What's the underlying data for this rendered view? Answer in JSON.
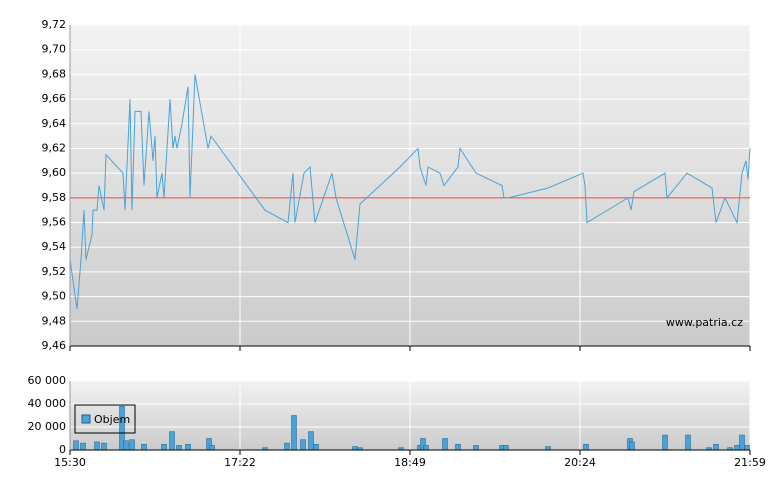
{
  "chart_data": [
    {
      "type": "line",
      "watermark": "www.patria.cz",
      "xlim": [
        0,
        680
      ],
      "ylim": [
        9.46,
        9.72
      ],
      "yticks": [
        {
          "value": 9.46,
          "label": "9,46"
        },
        {
          "value": 9.48,
          "label": "9,48"
        },
        {
          "value": 9.5,
          "label": "9,50"
        },
        {
          "value": 9.52,
          "label": "9,52"
        },
        {
          "value": 9.54,
          "label": "9,54"
        },
        {
          "value": 9.56,
          "label": "9,56"
        },
        {
          "value": 9.58,
          "label": "9,58"
        },
        {
          "value": 9.6,
          "label": "9,60"
        },
        {
          "value": 9.62,
          "label": "9,62"
        },
        {
          "value": 9.64,
          "label": "9,64"
        },
        {
          "value": 9.66,
          "label": "9,66"
        },
        {
          "value": 9.68,
          "label": "9,68"
        },
        {
          "value": 9.7,
          "label": "9,70"
        },
        {
          "value": 9.72,
          "label": "9,72"
        }
      ],
      "reference_line": 9.58,
      "reference_color": "#e8453c",
      "grid": true,
      "x": [
        0,
        7,
        11,
        14,
        16,
        22,
        23,
        27,
        29,
        34,
        36,
        53,
        55,
        60,
        62,
        65,
        71,
        74,
        79,
        83,
        85,
        87,
        92,
        94,
        100,
        103,
        105,
        107,
        112,
        118,
        120,
        125,
        138,
        141,
        195,
        218,
        223,
        225,
        234,
        240,
        245,
        262,
        266,
        285,
        290,
        330,
        348,
        350,
        356,
        358,
        370,
        374,
        388,
        390,
        406,
        432,
        434,
        438,
        478,
        513,
        515,
        517,
        558,
        561,
        564,
        595,
        597,
        617,
        642,
        646,
        655,
        667,
        672,
        676,
        678,
        680
      ],
      "series": [
        {
          "color": "#4aa3d6",
          "values": [
            9.53,
            9.49,
            9.53,
            9.57,
            9.53,
            9.55,
            9.57,
            9.57,
            9.59,
            9.57,
            9.615,
            9.6,
            9.57,
            9.66,
            9.57,
            9.65,
            9.65,
            9.59,
            9.65,
            9.61,
            9.63,
            9.58,
            9.6,
            9.58,
            9.66,
            9.62,
            9.63,
            9.62,
            9.64,
            9.67,
            9.58,
            9.68,
            9.62,
            9.63,
            9.57,
            9.56,
            9.6,
            9.56,
            9.6,
            9.605,
            9.56,
            9.6,
            9.58,
            9.53,
            9.575,
            9.605,
            9.62,
            9.605,
            9.59,
            9.605,
            9.6,
            9.59,
            9.605,
            9.62,
            9.6,
            9.59,
            9.58,
            9.58,
            9.588,
            9.6,
            9.59,
            9.56,
            9.58,
            9.57,
            9.585,
            9.6,
            9.58,
            9.6,
            9.588,
            9.56,
            9.58,
            9.56,
            9.6,
            9.61,
            9.595,
            9.62
          ]
        }
      ]
    },
    {
      "type": "bar",
      "xlim": [
        0,
        680
      ],
      "xticks": [
        {
          "value": 0,
          "label": "15:30"
        },
        {
          "value": 170,
          "label": "17:22"
        },
        {
          "value": 340,
          "label": "18:49"
        },
        {
          "value": 510,
          "label": "20:24"
        },
        {
          "value": 680,
          "label": "21:59"
        }
      ],
      "ylim": [
        0,
        60000
      ],
      "yticks": [
        0,
        {
          "value": 20000,
          "label": "20 000"
        },
        {
          "value": 40000,
          "label": "40 000"
        },
        {
          "value": 60000,
          "label": "60 000"
        }
      ],
      "grid": true,
      "x": [
        6,
        13,
        27,
        34,
        52,
        56,
        62,
        74,
        94,
        102,
        109,
        118,
        139,
        142,
        195,
        217,
        224,
        233,
        241,
        246,
        285,
        290,
        331,
        350,
        353,
        356,
        375,
        388,
        406,
        432,
        436,
        478,
        516,
        560,
        562,
        595,
        618,
        639,
        646,
        660,
        667,
        672,
        677
      ],
      "series": [
        {
          "name": "Objem",
          "color": "#4aa3d6",
          "values": [
            8000,
            6000,
            7000,
            6000,
            38000,
            8000,
            9000,
            5000,
            5000,
            16000,
            4000,
            5000,
            10000,
            4000,
            2000,
            6000,
            30000,
            9000,
            16000,
            5000,
            3000,
            2000,
            2000,
            4000,
            10000,
            4000,
            10000,
            5000,
            4000,
            4000,
            4000,
            3000,
            5000,
            10000,
            7000,
            13000,
            13000,
            2000,
            5000,
            2000,
            4000,
            13000,
            4000
          ]
        }
      ]
    }
  ]
}
